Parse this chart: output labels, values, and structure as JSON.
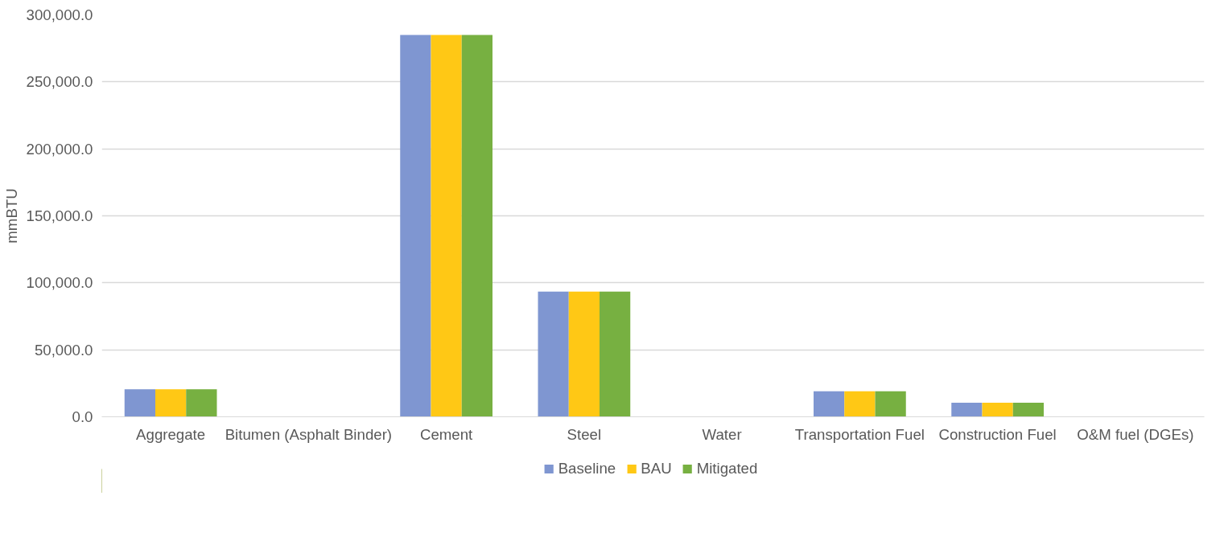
{
  "chart_data": {
    "type": "bar",
    "ylabel": "mmBTU",
    "categories": [
      "Aggregate",
      "Bitumen (Asphalt Binder)",
      "Cement",
      "Steel",
      "Water",
      "Transportation Fuel",
      "Construction Fuel",
      "O&M fuel (DGEs)"
    ],
    "series": [
      {
        "name": "Baseline",
        "color": "#7f96d1",
        "values": [
          20500,
          0,
          285000,
          93500,
          0,
          19000,
          10500,
          0
        ]
      },
      {
        "name": "BAU",
        "color": "#ffc815",
        "values": [
          20500,
          0,
          285000,
          93500,
          0,
          19000,
          10500,
          0
        ]
      },
      {
        "name": "Mitigated",
        "color": "#77b041",
        "values": [
          20500,
          0,
          285000,
          93500,
          0,
          19000,
          10500,
          0
        ]
      }
    ],
    "ylim": [
      0,
      300000
    ],
    "yticks": [
      {
        "value": 0,
        "label": "0.0"
      },
      {
        "value": 50000,
        "label": "50,000.0"
      },
      {
        "value": 100000,
        "label": "100,000.0"
      },
      {
        "value": 150000,
        "label": "150,000.0"
      },
      {
        "value": 200000,
        "label": "200,000.0"
      },
      {
        "value": 250000,
        "label": "250,000.0"
      },
      {
        "value": 300000,
        "label": "300,000.0"
      }
    ],
    "grid": "y",
    "legend": "bottom"
  }
}
